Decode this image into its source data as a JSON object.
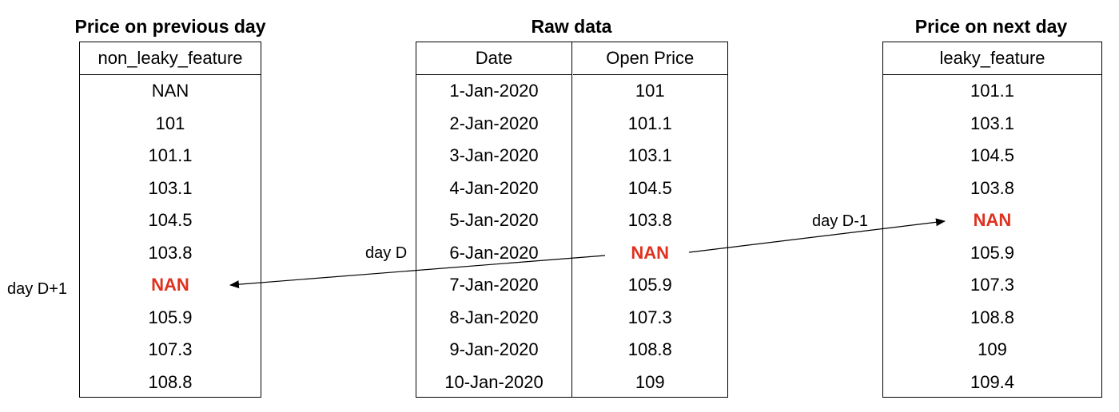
{
  "left": {
    "title": "Price on previous day",
    "header": "non_leaky_feature",
    "values": [
      "NAN",
      "101",
      "101.1",
      "103.1",
      "104.5",
      "103.8",
      "NAN",
      "105.9",
      "107.3",
      "108.8"
    ],
    "highlight_index": 6
  },
  "middle": {
    "title": "Raw data",
    "headers": [
      "Date",
      "Open Price"
    ],
    "dates": [
      "1-Jan-2020",
      "2-Jan-2020",
      "3-Jan-2020",
      "4-Jan-2020",
      "5-Jan-2020",
      "6-Jan-2020",
      "7-Jan-2020",
      "8-Jan-2020",
      "9-Jan-2020",
      "10-Jan-2020"
    ],
    "prices": [
      "101",
      "101.1",
      "103.1",
      "104.5",
      "103.8",
      "NAN",
      "105.9",
      "107.3",
      "108.8",
      "109"
    ],
    "highlight_index": 5
  },
  "right": {
    "title": "Price on next day",
    "header": "leaky_feature",
    "values": [
      "101.1",
      "103.1",
      "104.5",
      "103.8",
      "NAN",
      "105.9",
      "107.3",
      "108.8",
      "109",
      "109.4"
    ],
    "highlight_index": 4
  },
  "labels": {
    "day_d": "day D",
    "day_d_plus_1": "day D+1",
    "day_d_minus_1": "day D-1"
  },
  "colors": {
    "missing_value": "#e0301e",
    "border": "#000000"
  }
}
